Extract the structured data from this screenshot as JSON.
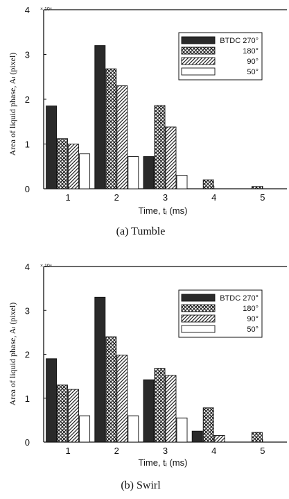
{
  "colors": {
    "dark": "#2a2a2a",
    "ink": "#111111",
    "paper": "#ffffff"
  },
  "chart_data": [
    {
      "type": "bar",
      "caption": "(a) Tumble",
      "exponent": "× 10⁴",
      "xlabel": "Time, tᵢ (ms)",
      "ylabel": "Area of liquid phase, Aₗ (pixel)",
      "categories": [
        "1",
        "2",
        "3",
        "4",
        "5"
      ],
      "ylim": [
        0,
        4
      ],
      "yticks": [
        "0",
        "1",
        "2",
        "3",
        "4"
      ],
      "legend_position": "top-right",
      "series": [
        {
          "name": "BTDC 270°",
          "pattern": "solid-dark",
          "values": [
            1.85,
            3.2,
            0.72,
            0.0,
            0.0
          ]
        },
        {
          "name": "180°",
          "pattern": "crosshatch",
          "values": [
            1.12,
            2.68,
            1.86,
            0.2,
            0.05
          ]
        },
        {
          "name": "90°",
          "pattern": "diagonal",
          "values": [
            1.0,
            2.3,
            1.38,
            0.0,
            0.0
          ]
        },
        {
          "name": "50°",
          "pattern": "white",
          "values": [
            0.78,
            0.72,
            0.3,
            0.0,
            0.0
          ]
        }
      ]
    },
    {
      "type": "bar",
      "caption": "(b) Swirl",
      "exponent": "× 10⁴",
      "xlabel": "Time, tᵢ (ms)",
      "ylabel": "Area of liquid phase, Aₗ (pixel)",
      "categories": [
        "1",
        "2",
        "3",
        "4",
        "5"
      ],
      "ylim": [
        0,
        4
      ],
      "yticks": [
        "0",
        "1",
        "2",
        "3",
        "4"
      ],
      "legend_position": "top-right",
      "series": [
        {
          "name": "BTDC 270°",
          "pattern": "solid-dark",
          "values": [
            1.9,
            3.3,
            1.42,
            0.25,
            0.0
          ]
        },
        {
          "name": "180°",
          "pattern": "crosshatch",
          "values": [
            1.3,
            2.4,
            1.68,
            0.78,
            0.22
          ]
        },
        {
          "name": "90°",
          "pattern": "diagonal",
          "values": [
            1.2,
            1.98,
            1.52,
            0.15,
            0.0
          ]
        },
        {
          "name": "50°",
          "pattern": "white",
          "values": [
            0.6,
            0.6,
            0.55,
            0.0,
            0.0
          ]
        }
      ]
    }
  ]
}
